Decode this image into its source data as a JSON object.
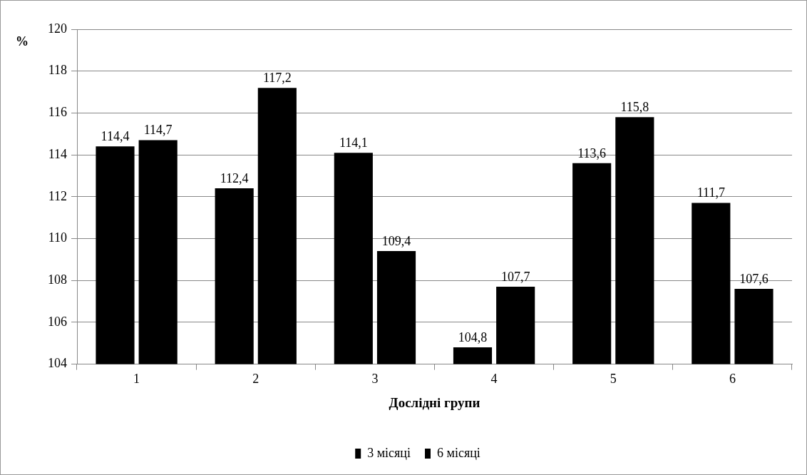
{
  "chart_data": {
    "type": "bar",
    "xlabel": "Дослідні групи",
    "ylabel": "%",
    "categories": [
      "1",
      "2",
      "3",
      "4",
      "5",
      "6"
    ],
    "series": [
      {
        "name": "3 місяці",
        "color": "#000000",
        "values": [
          114.4,
          112.4,
          114.1,
          104.8,
          113.6,
          111.7
        ],
        "value_labels": [
          "114,4",
          "112,4",
          "114,1",
          "104,8",
          "113,6",
          "111,7"
        ]
      },
      {
        "name": "6 місяці",
        "color": "#000000",
        "values": [
          114.7,
          117.2,
          109.4,
          107.7,
          115.8,
          107.6
        ],
        "value_labels": [
          "114,7",
          "117,2",
          "109,4",
          "107,7",
          "115,8",
          "107,6"
        ]
      }
    ],
    "ylim": [
      104,
      120
    ],
    "yticks": [
      104,
      106,
      108,
      110,
      112,
      114,
      116,
      118,
      120
    ],
    "grid": "y",
    "legend": "bottom"
  }
}
